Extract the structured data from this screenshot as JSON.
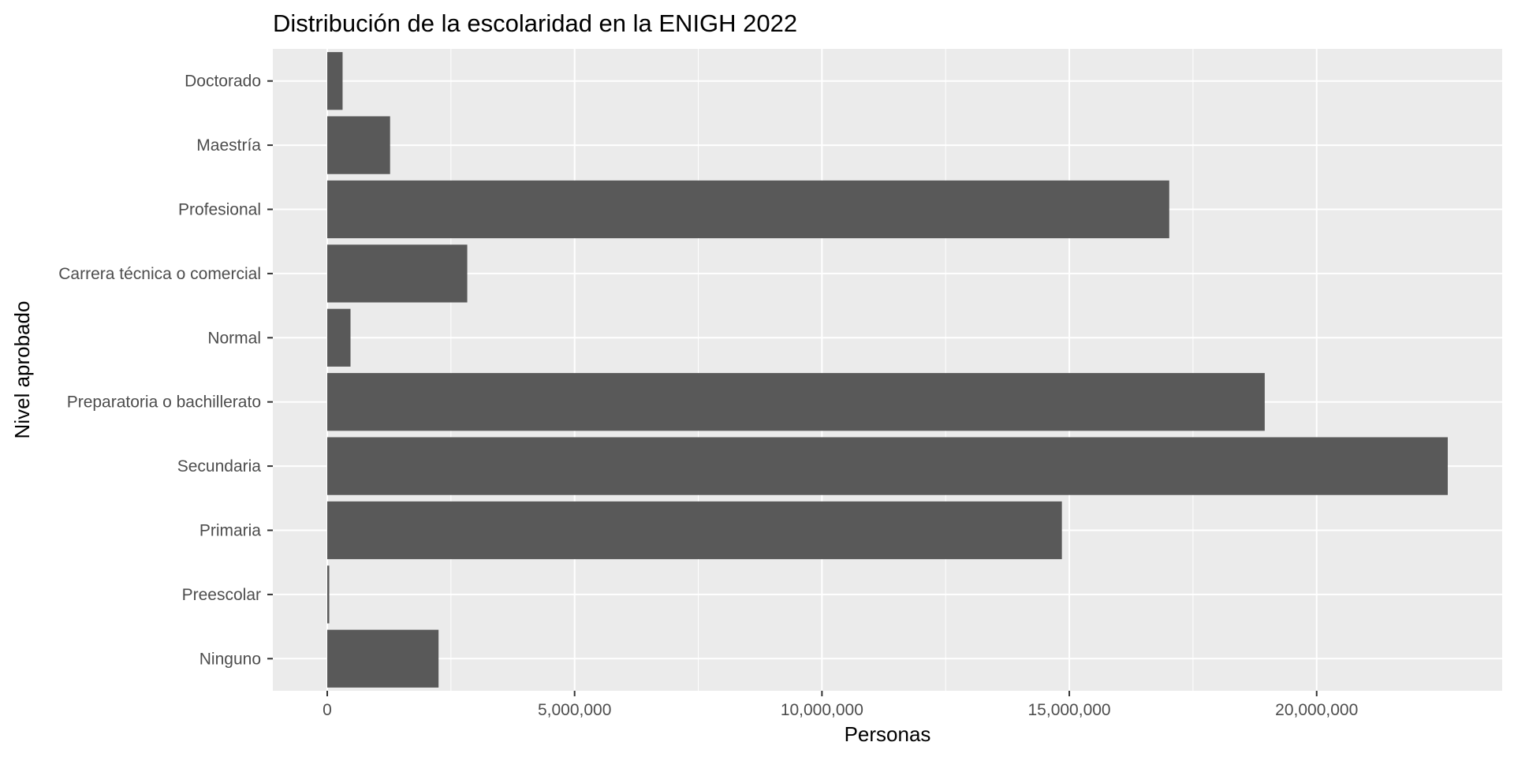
{
  "chart_data": {
    "type": "bar",
    "orientation": "horizontal",
    "title": "Distribución de la escolaridad en la ENIGH 2022",
    "xlabel": "Personas",
    "ylabel": "Nivel aprobado",
    "categories": [
      "Ninguno",
      "Preescolar",
      "Primaria",
      "Secundaria",
      "Preparatoria o bachillerato",
      "Normal",
      "Carrera técnica o comercial",
      "Profesional",
      "Maestría",
      "Doctorado"
    ],
    "values": [
      2250000,
      40000,
      14850000,
      22650000,
      18950000,
      470000,
      2830000,
      17020000,
      1270000,
      310000
    ],
    "xlim": [
      -1100000,
      23750000
    ],
    "x_ticks": [
      0,
      5000000,
      10000000,
      15000000,
      20000000
    ],
    "x_tick_labels": [
      "0",
      "5,000,000",
      "10,000,000",
      "15,000,000",
      "20,000,000"
    ],
    "grid": true,
    "legend": "none",
    "colors": {
      "bar": "#595959",
      "panel": "#ebebeb",
      "grid": "#ffffff",
      "text": "#000000",
      "tick_text": "#4d4d4d",
      "tick_mark": "#333333"
    }
  }
}
